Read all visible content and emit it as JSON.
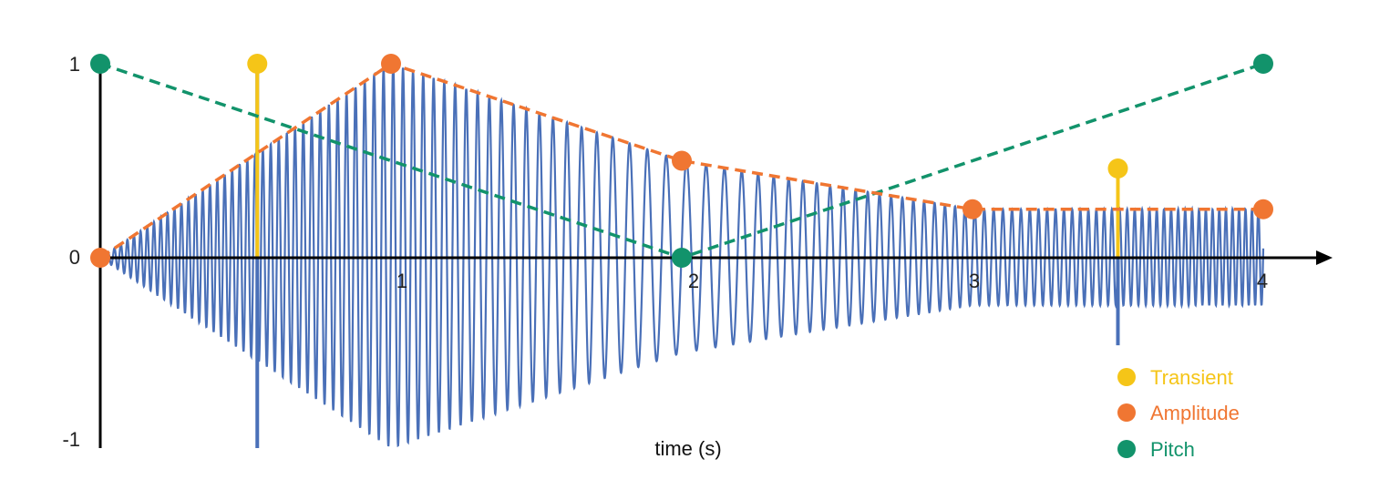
{
  "chart_data": {
    "type": "line",
    "xlabel": "time (s)",
    "ylabel": "",
    "xlim": [
      0,
      4
    ],
    "ylim": [
      -1,
      1
    ],
    "x_ticks": [
      "1",
      "2",
      "3",
      "4"
    ],
    "y_ticks": [
      "1",
      "0",
      "-1"
    ],
    "grid": false,
    "legend_position": "bottom-right",
    "series": [
      {
        "name": "Transient",
        "color": "#F5C518",
        "style": "stem",
        "points": [
          {
            "x": 0.54,
            "y": 1.0
          },
          {
            "x": 3.5,
            "y": 0.46
          }
        ]
      },
      {
        "name": "Amplitude",
        "color": "#F07632",
        "style": "dashed",
        "points": [
          {
            "x": 0,
            "y": 0
          },
          {
            "x": 1,
            "y": 1
          },
          {
            "x": 2,
            "y": 0.5
          },
          {
            "x": 3,
            "y": 0.25
          },
          {
            "x": 4,
            "y": 0.25
          }
        ]
      },
      {
        "name": "Pitch",
        "color": "#12936B",
        "style": "dashed",
        "points": [
          {
            "x": 0,
            "y": 1
          },
          {
            "x": 2,
            "y": 0
          },
          {
            "x": 4,
            "y": 1
          }
        ]
      }
    ],
    "waveform": {
      "color": "#4A70B8",
      "description_values": "sine oscillation whose envelope follows Amplitude and frequency follows Pitch"
    }
  }
}
